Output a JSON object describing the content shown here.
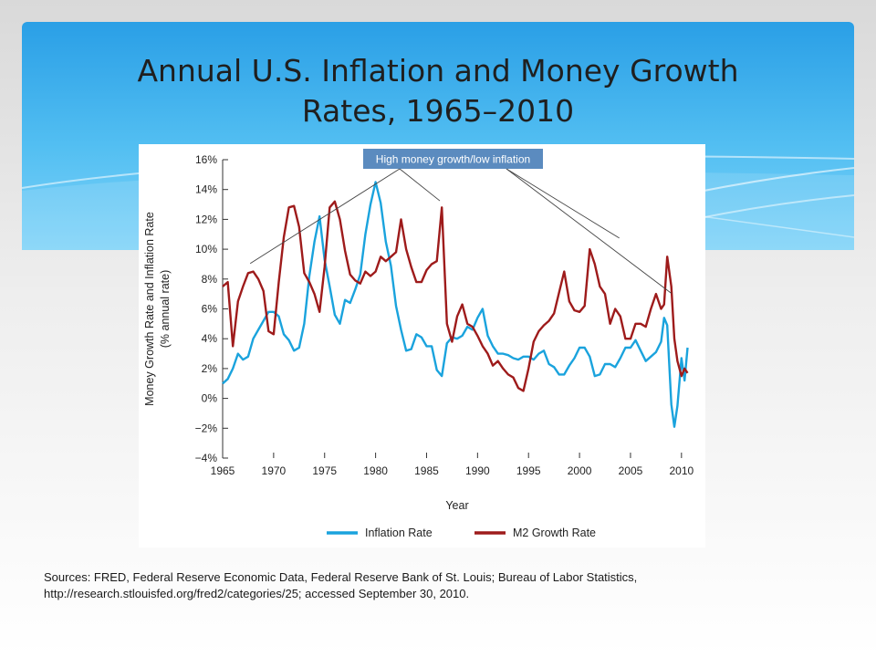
{
  "slide": {
    "title_line1": "Annual U.S. Inflation and Money Growth",
    "title_line2": "Rates, 1965–2010",
    "sources_line1": "Sources: FRED, Federal Reserve Economic Data, Federal Reserve Bank of St. Louis; Bureau of Labor Statistics,",
    "sources_line2": "http://research.stlouisfed.org/fred2/categories/25; accessed September 30, 2010."
  },
  "colors": {
    "header_blue": "#2a9fe6",
    "inflation": "#1aa3dd",
    "m2": "#9e1b1b",
    "callout_box": "#5b8bbf"
  },
  "chart_data": {
    "type": "line",
    "title": "",
    "xlabel": "Year",
    "ylabel": "Money Growth Rate and Inflation Rate",
    "ylabel_line2": "(% annual rate)",
    "xlim": [
      1965,
      2011
    ],
    "ylim": [
      -4,
      16
    ],
    "x_ticks": [
      1965,
      1970,
      1975,
      1980,
      1985,
      1990,
      1995,
      2000,
      2005,
      2010
    ],
    "x_tick_labels": [
      "1965",
      "1970",
      "1975",
      "1980",
      "1985",
      "1990",
      "1995",
      "2000",
      "2005",
      "2010"
    ],
    "y_ticks": [
      -4,
      -2,
      0,
      2,
      4,
      6,
      8,
      10,
      12,
      14,
      16
    ],
    "y_tick_labels": [
      "−4%",
      "−2%",
      "0%",
      "2%",
      "4%",
      "6%",
      "8%",
      "10%",
      "12%",
      "14%",
      "16%"
    ],
    "grid": false,
    "legend_position": "bottom",
    "annotation": {
      "text": "High money growth/low inflation",
      "targets": [
        {
          "x": 1967.7,
          "y": 8.8
        },
        {
          "x": 1986.3,
          "y": 13.0
        },
        {
          "x": 2003.9,
          "y": 10.5
        },
        {
          "x": 2009.0,
          "y": 6.8
        }
      ]
    },
    "series": [
      {
        "name": "Inflation Rate",
        "color": "#1aa3dd",
        "x": [
          1965,
          1965.5,
          1966,
          1966.5,
          1967,
          1967.5,
          1968,
          1968.5,
          1969,
          1969.5,
          1970,
          1970.5,
          1971,
          1971.5,
          1972,
          1972.5,
          1973,
          1973.5,
          1974,
          1974.5,
          1975,
          1975.5,
          1976,
          1976.5,
          1977,
          1977.5,
          1978,
          1978.5,
          1979,
          1979.5,
          1980,
          1980.5,
          1981,
          1981.5,
          1982,
          1982.5,
          1983,
          1983.5,
          1984,
          1984.5,
          1985,
          1985.5,
          1986,
          1986.5,
          1987,
          1987.5,
          1988,
          1988.5,
          1989,
          1989.5,
          1990,
          1990.5,
          1991,
          1991.5,
          1992,
          1992.5,
          1993,
          1993.5,
          1994,
          1994.5,
          1995,
          1995.5,
          1996,
          1996.5,
          1997,
          1997.5,
          1998,
          1998.5,
          1999,
          1999.5,
          2000,
          2000.5,
          2001,
          2001.5,
          2002,
          2002.5,
          2003,
          2003.5,
          2004,
          2004.5,
          2005,
          2005.5,
          2006,
          2006.5,
          2007,
          2007.5,
          2008,
          2008.3,
          2008.6,
          2009,
          2009.3,
          2009.6,
          2010,
          2010.3,
          2010.6
        ],
        "y": [
          1.0,
          1.3,
          2.0,
          3.0,
          2.6,
          2.8,
          4.0,
          4.6,
          5.2,
          5.8,
          5.8,
          5.5,
          4.3,
          3.9,
          3.2,
          3.4,
          5.0,
          8.2,
          10.5,
          12.2,
          9.3,
          7.5,
          5.6,
          5.0,
          6.6,
          6.4,
          7.3,
          8.3,
          11.0,
          13.0,
          14.5,
          13.1,
          10.5,
          8.9,
          6.2,
          4.6,
          3.2,
          3.3,
          4.3,
          4.1,
          3.5,
          3.5,
          1.9,
          1.5,
          3.7,
          4.1,
          4.0,
          4.2,
          4.8,
          4.6,
          5.4,
          6.0,
          4.2,
          3.5,
          3.0,
          3.0,
          2.9,
          2.7,
          2.6,
          2.8,
          2.8,
          2.6,
          3.0,
          3.2,
          2.3,
          2.1,
          1.6,
          1.6,
          2.2,
          2.7,
          3.4,
          3.4,
          2.8,
          1.5,
          1.6,
          2.3,
          2.3,
          2.1,
          2.7,
          3.4,
          3.4,
          3.9,
          3.2,
          2.5,
          2.8,
          3.1,
          3.8,
          5.4,
          4.9,
          -0.4,
          -1.9,
          -0.5,
          2.7,
          1.2,
          3.4
        ]
      },
      {
        "name": "M2 Growth Rate",
        "color": "#9e1b1b",
        "x": [
          1965,
          1965.5,
          1966,
          1966.5,
          1967,
          1967.5,
          1968,
          1968.5,
          1969,
          1969.5,
          1970,
          1970.5,
          1971,
          1971.5,
          1972,
          1972.5,
          1973,
          1973.5,
          1974,
          1974.5,
          1975,
          1975.5,
          1976,
          1976.5,
          1977,
          1977.5,
          1978,
          1978.5,
          1979,
          1979.5,
          1980,
          1980.5,
          1981,
          1981.5,
          1982,
          1982.5,
          1983,
          1983.5,
          1984,
          1984.5,
          1985,
          1985.5,
          1986,
          1986.5,
          1987,
          1987.5,
          1988,
          1988.5,
          1989,
          1989.5,
          1990,
          1990.5,
          1991,
          1991.5,
          1992,
          1992.5,
          1993,
          1993.5,
          1994,
          1994.5,
          1995,
          1995.5,
          1996,
          1996.5,
          1997,
          1997.5,
          1998,
          1998.5,
          1999,
          1999.5,
          2000,
          2000.5,
          2001,
          2001.5,
          2002,
          2002.5,
          2003,
          2003.5,
          2004,
          2004.5,
          2005,
          2005.5,
          2006,
          2006.5,
          2007,
          2007.5,
          2008,
          2008.3,
          2008.6,
          2009,
          2009.3,
          2009.6,
          2010,
          2010.3,
          2010.6
        ],
        "y": [
          7.5,
          7.8,
          3.5,
          6.5,
          7.5,
          8.4,
          8.5,
          8.0,
          7.2,
          4.5,
          4.3,
          7.8,
          10.8,
          12.8,
          12.9,
          11.5,
          8.4,
          7.8,
          7.0,
          5.8,
          8.8,
          12.8,
          13.2,
          12.0,
          9.9,
          8.3,
          7.9,
          7.7,
          8.5,
          8.2,
          8.5,
          9.5,
          9.2,
          9.5,
          9.8,
          12.0,
          10.0,
          8.8,
          7.8,
          7.8,
          8.6,
          9.0,
          9.2,
          12.8,
          5.0,
          3.8,
          5.5,
          6.3,
          5.0,
          4.8,
          4.2,
          3.5,
          3.0,
          2.2,
          2.5,
          2.0,
          1.6,
          1.4,
          0.7,
          0.5,
          2.0,
          3.8,
          4.5,
          4.9,
          5.2,
          5.7,
          7.1,
          8.5,
          6.5,
          5.9,
          5.8,
          6.2,
          10.0,
          9.0,
          7.5,
          7.0,
          5.0,
          6.0,
          5.5,
          4.0,
          4.0,
          5.0,
          5.0,
          4.8,
          6.0,
          7.0,
          6.0,
          6.3,
          9.5,
          7.5,
          4.0,
          2.5,
          1.5,
          2.0,
          1.7
        ]
      }
    ]
  }
}
